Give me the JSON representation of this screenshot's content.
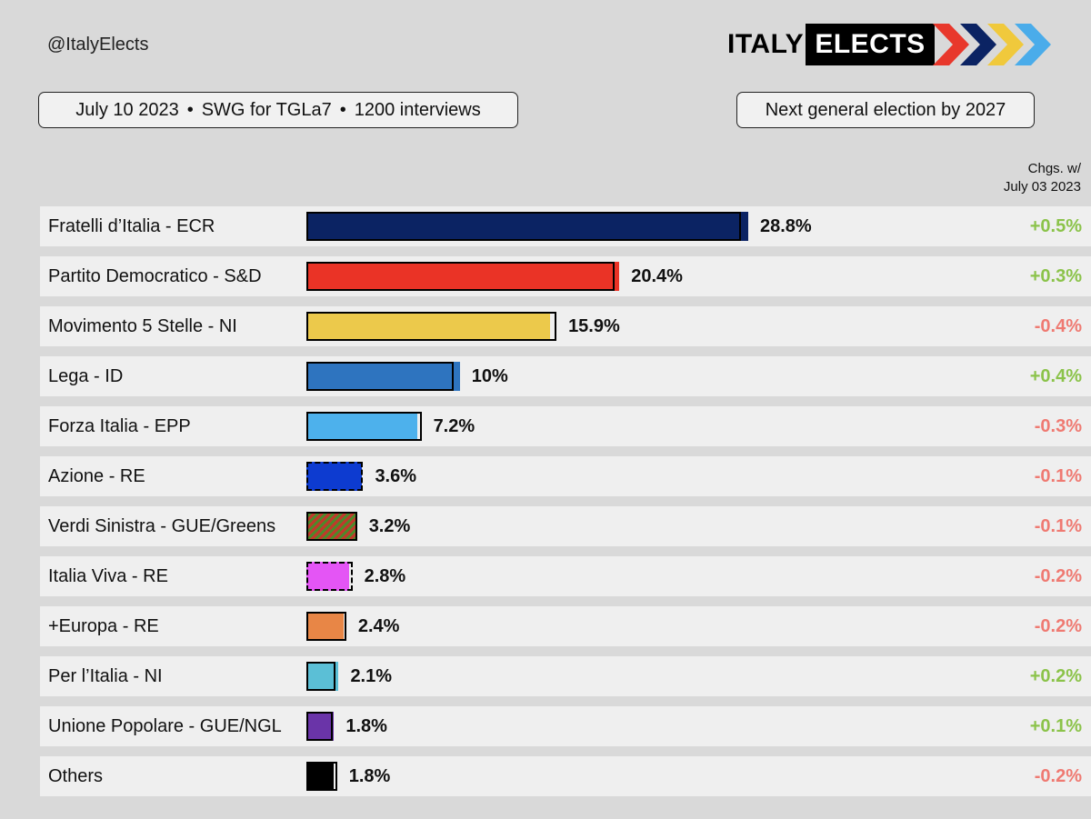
{
  "header": {
    "handle": "@ItalyElects",
    "logo_left": "ITALY",
    "logo_right": "ELECTS",
    "logo_chevron_colors": [
      "#e8382c",
      "#0b2363",
      "#f0c93c",
      "#4aacea"
    ]
  },
  "poll_info": {
    "date": "July 10 2023",
    "pollster": "SWG for TGLa7",
    "sample": "1200 interviews",
    "separator": "•"
  },
  "next_election": "Next general election by 2027",
  "changes_header": {
    "line1": "Chgs. w/",
    "line2": "July 03 2023"
  },
  "colors": {
    "positive": "#8bc34a",
    "negative": "#ef7a72",
    "row_bg": "#efefef",
    "page_bg": "#d9d9d9"
  },
  "chart_data": {
    "type": "bar",
    "orientation": "horizontal",
    "categories": [
      "Fratelli d’Italia - ECR",
      "Partito Democratico - S&D",
      "Movimento 5 Stelle - NI",
      "Lega - ID",
      "Forza Italia - EPP",
      "Azione - RE",
      "Verdi Sinistra - GUE/Greens",
      "Italia Viva - RE",
      "+Europa - RE",
      "Per l’Italia - NI",
      "Unione Popolare - GUE/NGL",
      "Others"
    ],
    "series": [
      {
        "name": "July 10 2023",
        "values": [
          28.8,
          20.4,
          15.9,
          10,
          7.2,
          3.6,
          3.2,
          2.8,
          2.4,
          2.1,
          1.8,
          1.8
        ],
        "labels": [
          "28.8%",
          "20.4%",
          "15.9%",
          "10%",
          "7.2%",
          "3.6%",
          "3.2%",
          "2.8%",
          "2.4%",
          "2.1%",
          "1.8%",
          "1.8%"
        ]
      },
      {
        "name": "July 03 2023",
        "values": [
          28.3,
          20.1,
          16.3,
          9.6,
          7.5,
          3.7,
          3.3,
          3.0,
          2.6,
          1.9,
          1.7,
          2.0
        ]
      }
    ],
    "changes": [
      "+0.5%",
      "+0.3%",
      "-0.4%",
      "+0.4%",
      "-0.3%",
      "-0.1%",
      "-0.1%",
      "-0.2%",
      "-0.2%",
      "+0.2%",
      "+0.1%",
      "-0.2%"
    ],
    "bar_colors": [
      "#0b2363",
      "#ea3326",
      "#ecc94b",
      "#2e74bf",
      "#4db1ec",
      "#0d3bd0",
      "hatch",
      "#e455f5",
      "#e88646",
      "#5bbfd6",
      "#6a34a8",
      "#000000"
    ],
    "previous_border_style": [
      "solid",
      "solid",
      "solid",
      "solid",
      "solid",
      "dashed",
      "solid",
      "dashed",
      "solid",
      "solid",
      "solid",
      "solid"
    ],
    "xlim": [
      0,
      30
    ],
    "grid": false,
    "legend": "none"
  }
}
